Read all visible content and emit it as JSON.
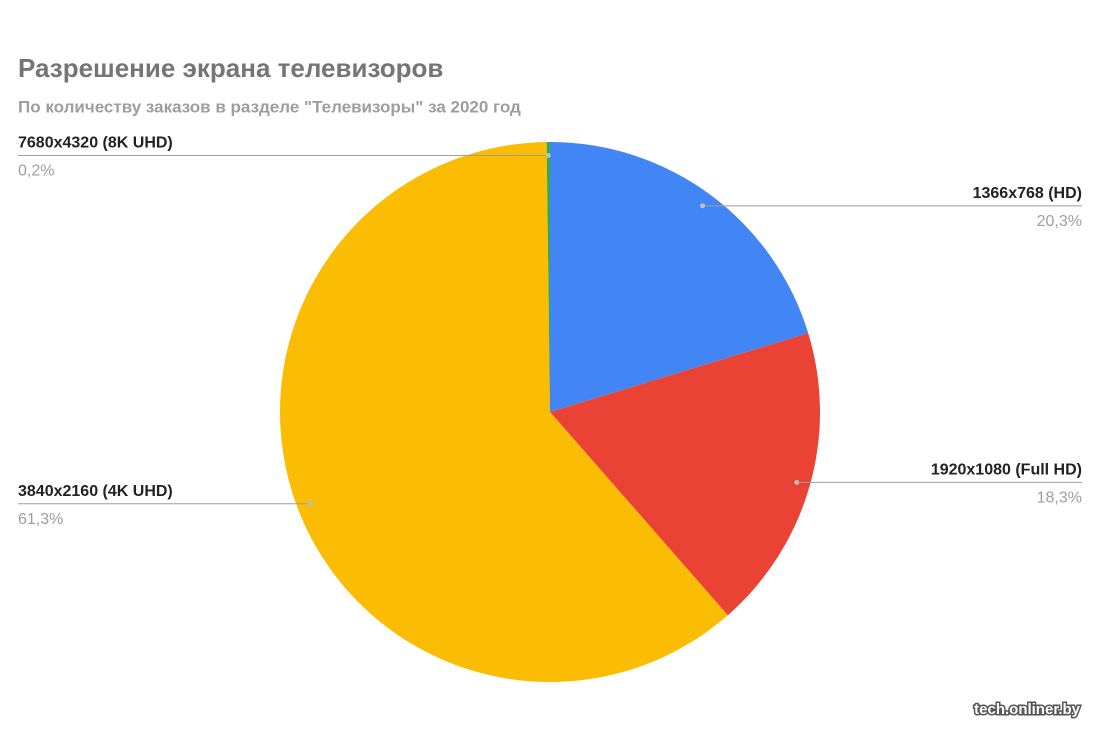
{
  "chart_data": {
    "type": "pie",
    "title": "Разрешение экрана телевизоров",
    "subtitle": "По количеству заказов в разделе \"Телевизоры\" за 2020 год",
    "categories": [
      "1366x768 (HD)",
      "1920x1080 (Full HD)",
      "3840x2160 (4K UHD)",
      "7680x4320 (8K UHD)"
    ],
    "values": [
      20.3,
      18.3,
      61.3,
      0.2
    ],
    "value_labels": [
      "20,3%",
      "18,3%",
      "61,3%",
      "0,2%"
    ],
    "colors": [
      "#4285f4",
      "#ea4335",
      "#fbbc04",
      "#34a853"
    ],
    "watermark": "tech.onliner.by"
  }
}
